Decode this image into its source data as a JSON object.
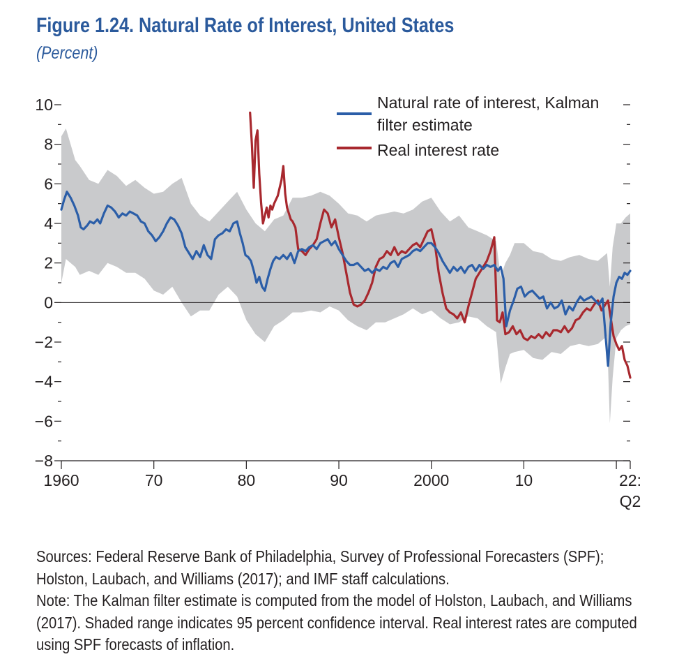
{
  "header": {
    "title": "Figure 1.24.  Natural Rate of Interest, United States",
    "subtitle": "(Percent)"
  },
  "colors": {
    "kalman": "#2b5ea8",
    "real_rate": "#a8282e",
    "band": "#c9cacc",
    "text": "#231f20",
    "title": "#2b5a9c"
  },
  "notes": {
    "sources": "Sources: Federal Reserve Bank of Philadelphia, Survey of Professional Forecasters (SPF); Holston, Laubach, and Williams (2017); and IMF staff calculations.",
    "note": "Note: The Kalman filter estimate is computed from the model of Holston, Laubach, and Williams (2017). Shaded range indicates 95 percent confidence interval. Real interest rates are computed using SPF forecasts of inflation."
  },
  "chart_data": {
    "type": "line",
    "xlim": [
      1961,
      2022.5
    ],
    "ylim": [
      -8,
      10
    ],
    "y_ticks": [
      {
        "value": 10,
        "label": "10"
      },
      {
        "value": 8,
        "label": "8"
      },
      {
        "value": 6,
        "label": "6"
      },
      {
        "value": 4,
        "label": "4"
      },
      {
        "value": 2,
        "label": "2"
      },
      {
        "value": 0,
        "label": "0"
      },
      {
        "value": -2,
        "label": "−2"
      },
      {
        "value": -4,
        "label": "−4"
      },
      {
        "value": -6,
        "label": "−6"
      },
      {
        "value": -8,
        "label": "−8"
      }
    ],
    "x_ticks": [
      {
        "value": 1961,
        "label": "1960"
      },
      {
        "value": 1971,
        "label": "70"
      },
      {
        "value": 1981,
        "label": "80"
      },
      {
        "value": 1991,
        "label": "90"
      },
      {
        "value": 2001,
        "label": "2000"
      },
      {
        "value": 2011,
        "label": "10"
      },
      {
        "value": 2021,
        "label": ""
      },
      {
        "value": 2022.5,
        "label": "22:"
      }
    ],
    "x_end_label_line2": "Q2",
    "zero_line": true,
    "grid": false,
    "legend_position": "top-right",
    "series": [
      {
        "name": "Natural rate of interest, Kalman filter estimate",
        "legend_line1": "Natural rate of interest, Kalman",
        "legend_line2": "filter estimate",
        "color_key": "kalman",
        "x": [
          1961.0,
          1961.3,
          1961.6,
          1962.0,
          1962.4,
          1962.8,
          1963.1,
          1963.4,
          1963.8,
          1964.1,
          1964.5,
          1964.9,
          1965.2,
          1965.6,
          1966.0,
          1966.4,
          1966.8,
          1967.2,
          1967.6,
          1968.0,
          1968.4,
          1968.8,
          1969.2,
          1969.6,
          1970.0,
          1970.4,
          1970.8,
          1971.2,
          1971.6,
          1972.0,
          1972.4,
          1972.8,
          1973.2,
          1973.6,
          1974.0,
          1974.4,
          1974.8,
          1975.2,
          1975.6,
          1976.0,
          1976.4,
          1976.8,
          1977.2,
          1977.6,
          1978.0,
          1978.4,
          1978.8,
          1979.2,
          1979.6,
          1980.0,
          1980.3,
          1980.6,
          1980.9,
          1981.2,
          1981.5,
          1981.8,
          1982.1,
          1982.4,
          1982.7,
          1983.0,
          1983.3,
          1983.6,
          1983.9,
          1984.2,
          1984.6,
          1985.0,
          1985.4,
          1985.8,
          1986.2,
          1986.6,
          1987.0,
          1987.4,
          1987.8,
          1988.2,
          1988.6,
          1989.0,
          1989.4,
          1989.8,
          1990.2,
          1990.6,
          1991.0,
          1991.4,
          1991.8,
          1992.2,
          1992.6,
          1993.0,
          1993.4,
          1993.8,
          1994.2,
          1994.6,
          1995.0,
          1995.4,
          1995.8,
          1996.2,
          1996.6,
          1997.0,
          1997.4,
          1997.8,
          1998.2,
          1998.6,
          1999.0,
          1999.4,
          1999.8,
          2000.2,
          2000.6,
          2001.0,
          2001.4,
          2001.8,
          2002.2,
          2002.6,
          2003.0,
          2003.4,
          2003.8,
          2004.2,
          2004.6,
          2005.0,
          2005.4,
          2005.8,
          2006.2,
          2006.6,
          2007.0,
          2007.4,
          2007.8,
          2008.2,
          2008.5,
          2008.8,
          2009.1,
          2009.5,
          2009.9,
          2010.3,
          2010.7,
          2011.1,
          2011.5,
          2011.9,
          2012.3,
          2012.7,
          2013.1,
          2013.5,
          2013.9,
          2014.3,
          2014.7,
          2015.1,
          2015.5,
          2015.9,
          2016.3,
          2016.7,
          2017.1,
          2017.5,
          2017.9,
          2018.3,
          2018.7,
          2019.1,
          2019.5,
          2019.8,
          2020.1,
          2020.4,
          2020.7,
          2021.0,
          2021.3,
          2021.6,
          2021.9,
          2022.2,
          2022.5
        ],
        "values": [
          4.7,
          5.2,
          5.6,
          5.3,
          4.9,
          4.4,
          3.8,
          3.7,
          3.9,
          4.1,
          4.0,
          4.2,
          4.0,
          4.5,
          4.9,
          4.8,
          4.6,
          4.3,
          4.5,
          4.4,
          4.6,
          4.5,
          4.4,
          4.1,
          4.0,
          3.6,
          3.4,
          3.1,
          3.3,
          3.6,
          4.0,
          4.3,
          4.2,
          3.9,
          3.5,
          2.8,
          2.5,
          2.2,
          2.6,
          2.3,
          2.9,
          2.4,
          2.2,
          3.2,
          3.4,
          3.5,
          3.7,
          3.6,
          4.0,
          4.1,
          3.5,
          3.0,
          2.4,
          2.3,
          2.1,
          1.6,
          1.0,
          1.3,
          0.8,
          0.6,
          1.2,
          1.7,
          2.1,
          2.3,
          2.2,
          2.4,
          2.2,
          2.5,
          2.0,
          2.6,
          2.7,
          2.6,
          2.8,
          2.9,
          2.7,
          3.0,
          3.1,
          3.2,
          2.9,
          3.1,
          2.7,
          2.4,
          2.1,
          1.9,
          1.9,
          2.0,
          1.8,
          1.6,
          1.7,
          1.5,
          1.7,
          1.6,
          1.8,
          1.7,
          2.0,
          2.1,
          1.8,
          2.2,
          2.3,
          2.4,
          2.6,
          2.7,
          2.6,
          2.8,
          3.0,
          3.0,
          2.8,
          2.5,
          2.1,
          1.8,
          1.5,
          1.8,
          1.6,
          1.8,
          1.5,
          1.8,
          1.9,
          1.6,
          1.9,
          1.7,
          1.9,
          1.8,
          1.9,
          1.6,
          1.8,
          1.2,
          -1.2,
          -0.4,
          0.1,
          0.7,
          0.8,
          0.3,
          0.5,
          0.6,
          0.4,
          0.2,
          0.3,
          -0.3,
          0.0,
          -0.3,
          -0.2,
          0.1,
          -0.6,
          -0.2,
          -0.4,
          0.0,
          0.3,
          0.1,
          0.2,
          0.3,
          0.1,
          -0.1,
          0.2,
          -1.5,
          -3.2,
          -1.0,
          0.3,
          1.0,
          1.3,
          1.2,
          1.5,
          1.4,
          1.6
        ]
      },
      {
        "name": "Real interest rate",
        "legend_line1": "Real interest rate",
        "color_key": "real_rate",
        "x": [
          1981.4,
          1981.6,
          1981.8,
          1982.0,
          1982.2,
          1982.4,
          1982.6,
          1982.8,
          1983.0,
          1983.2,
          1983.4,
          1983.6,
          1983.8,
          1984.0,
          1984.2,
          1984.4,
          1984.6,
          1984.8,
          1985.0,
          1985.2,
          1985.4,
          1985.6,
          1985.8,
          1986.0,
          1986.3,
          1986.6,
          1987.0,
          1987.4,
          1987.8,
          1988.2,
          1988.6,
          1989.0,
          1989.4,
          1989.8,
          1990.2,
          1990.6,
          1991.0,
          1991.4,
          1991.8,
          1992.2,
          1992.6,
          1993.0,
          1993.4,
          1993.8,
          1994.2,
          1994.6,
          1995.0,
          1995.4,
          1995.8,
          1996.2,
          1996.6,
          1997.0,
          1997.4,
          1997.8,
          1998.2,
          1998.6,
          1999.0,
          1999.4,
          1999.8,
          2000.2,
          2000.6,
          2001.0,
          2001.4,
          2001.8,
          2002.2,
          2002.6,
          2003.0,
          2003.4,
          2003.8,
          2004.2,
          2004.6,
          2005.0,
          2005.4,
          2005.8,
          2006.2,
          2006.6,
          2007.0,
          2007.4,
          2007.8,
          2008.1,
          2008.4,
          2008.7,
          2009.0,
          2009.4,
          2009.8,
          2010.2,
          2010.6,
          2011.0,
          2011.4,
          2011.8,
          2012.2,
          2012.6,
          2013.0,
          2013.4,
          2013.8,
          2014.2,
          2014.6,
          2015.0,
          2015.4,
          2015.8,
          2016.2,
          2016.6,
          2017.0,
          2017.4,
          2017.8,
          2018.2,
          2018.6,
          2019.0,
          2019.4,
          2019.8,
          2020.1,
          2020.4,
          2020.7,
          2021.0,
          2021.3,
          2021.6,
          2021.9,
          2022.2,
          2022.5
        ],
        "values": [
          9.6,
          8.0,
          5.8,
          8.2,
          8.7,
          6.5,
          5.0,
          4.0,
          4.4,
          4.8,
          4.3,
          4.9,
          4.7,
          5.0,
          5.2,
          5.4,
          5.8,
          6.2,
          6.9,
          5.5,
          4.8,
          4.5,
          4.2,
          4.1,
          3.8,
          2.7,
          2.6,
          2.4,
          2.7,
          2.9,
          3.2,
          4.0,
          4.7,
          4.5,
          3.8,
          4.2,
          3.3,
          2.5,
          1.5,
          0.5,
          -0.1,
          -0.2,
          -0.1,
          0.1,
          0.5,
          1.0,
          1.8,
          2.2,
          2.3,
          2.6,
          2.4,
          2.8,
          2.4,
          2.6,
          2.5,
          2.7,
          2.9,
          3.0,
          2.8,
          3.2,
          3.6,
          3.7,
          2.9,
          1.5,
          0.5,
          -0.3,
          -0.5,
          -0.6,
          -0.8,
          -0.5,
          -1.0,
          -0.2,
          0.5,
          1.2,
          1.5,
          1.8,
          2.1,
          2.6,
          3.3,
          -0.9,
          -1.0,
          -0.5,
          -1.6,
          -1.5,
          -1.2,
          -1.6,
          -1.4,
          -1.8,
          -1.9,
          -1.7,
          -1.8,
          -1.6,
          -1.8,
          -1.5,
          -1.7,
          -1.4,
          -1.4,
          -1.5,
          -1.2,
          -1.5,
          -1.3,
          -0.9,
          -0.8,
          -0.5,
          -0.3,
          -0.4,
          -0.1,
          0.1,
          -0.4,
          -0.1,
          0.1,
          -0.8,
          -1.7,
          -2.1,
          -2.4,
          -2.2,
          -2.9,
          -3.2,
          -3.8
        ]
      }
    ],
    "confidence_band": {
      "name": "95 percent confidence interval",
      "x": [
        1961.0,
        1961.5,
        1962.0,
        1962.5,
        1963.0,
        1964.0,
        1965.0,
        1966.0,
        1967.0,
        1968.0,
        1969.0,
        1970.0,
        1971.0,
        1972.0,
        1973.0,
        1974.0,
        1975.0,
        1976.0,
        1977.0,
        1978.0,
        1979.0,
        1980.0,
        1981.0,
        1982.0,
        1983.0,
        1984.0,
        1985.0,
        1986.0,
        1987.0,
        1988.0,
        1989.0,
        1990.0,
        1991.0,
        1992.0,
        1993.0,
        1994.0,
        1995.0,
        1996.0,
        1997.0,
        1998.0,
        1999.0,
        2000.0,
        2001.0,
        2002.0,
        2003.0,
        2004.0,
        2005.0,
        2006.0,
        2007.0,
        2008.0,
        2008.5,
        2009.0,
        2009.5,
        2010.0,
        2011.0,
        2012.0,
        2013.0,
        2014.0,
        2015.0,
        2016.0,
        2017.0,
        2018.0,
        2019.0,
        2020.0,
        2020.3,
        2020.6,
        2021.0,
        2021.5,
        2022.0,
        2022.5
      ],
      "upper": [
        8.4,
        8.8,
        8.0,
        7.2,
        6.9,
        6.2,
        6.0,
        6.7,
        6.4,
        5.9,
        6.2,
        5.8,
        5.5,
        5.6,
        6.0,
        6.3,
        5.0,
        4.4,
        4.1,
        4.6,
        5.1,
        5.6,
        4.7,
        4.0,
        3.6,
        4.2,
        4.4,
        5.3,
        5.3,
        5.4,
        5.6,
        5.4,
        5.0,
        4.5,
        4.4,
        4.1,
        4.4,
        4.5,
        4.6,
        4.5,
        4.7,
        5.1,
        5.3,
        4.6,
        4.1,
        4.4,
        3.8,
        3.6,
        3.4,
        3.1,
        1.3,
        2.0,
        2.4,
        3.0,
        3.0,
        2.6,
        2.5,
        2.2,
        2.1,
        2.3,
        2.4,
        2.2,
        2.1,
        2.5,
        0.8,
        2.8,
        4.0,
        4.0,
        4.3,
        4.5
      ],
      "lower": [
        1.0,
        2.2,
        2.0,
        1.8,
        1.4,
        1.6,
        1.4,
        2.0,
        1.8,
        1.5,
        1.5,
        1.2,
        0.6,
        0.4,
        0.8,
        0.0,
        -0.7,
        -0.4,
        -0.4,
        0.4,
        0.8,
        0.3,
        -0.9,
        -1.6,
        -2.0,
        -1.2,
        -0.9,
        -0.5,
        -0.5,
        -0.4,
        -0.5,
        -0.2,
        -0.4,
        -0.9,
        -1.2,
        -1.4,
        -1.0,
        -1.0,
        -0.8,
        -0.6,
        -0.3,
        -0.6,
        -0.4,
        -0.8,
        -1.1,
        -1.0,
        -0.7,
        -0.8,
        -1.2,
        -1.5,
        -4.1,
        -3.3,
        -2.6,
        -2.5,
        -2.4,
        -2.8,
        -2.9,
        -2.5,
        -2.6,
        -2.2,
        -2.1,
        -2.2,
        -2.1,
        -1.7,
        -6.1,
        -3.8,
        -1.8,
        -1.4,
        -1.2,
        -1.1
      ]
    }
  }
}
